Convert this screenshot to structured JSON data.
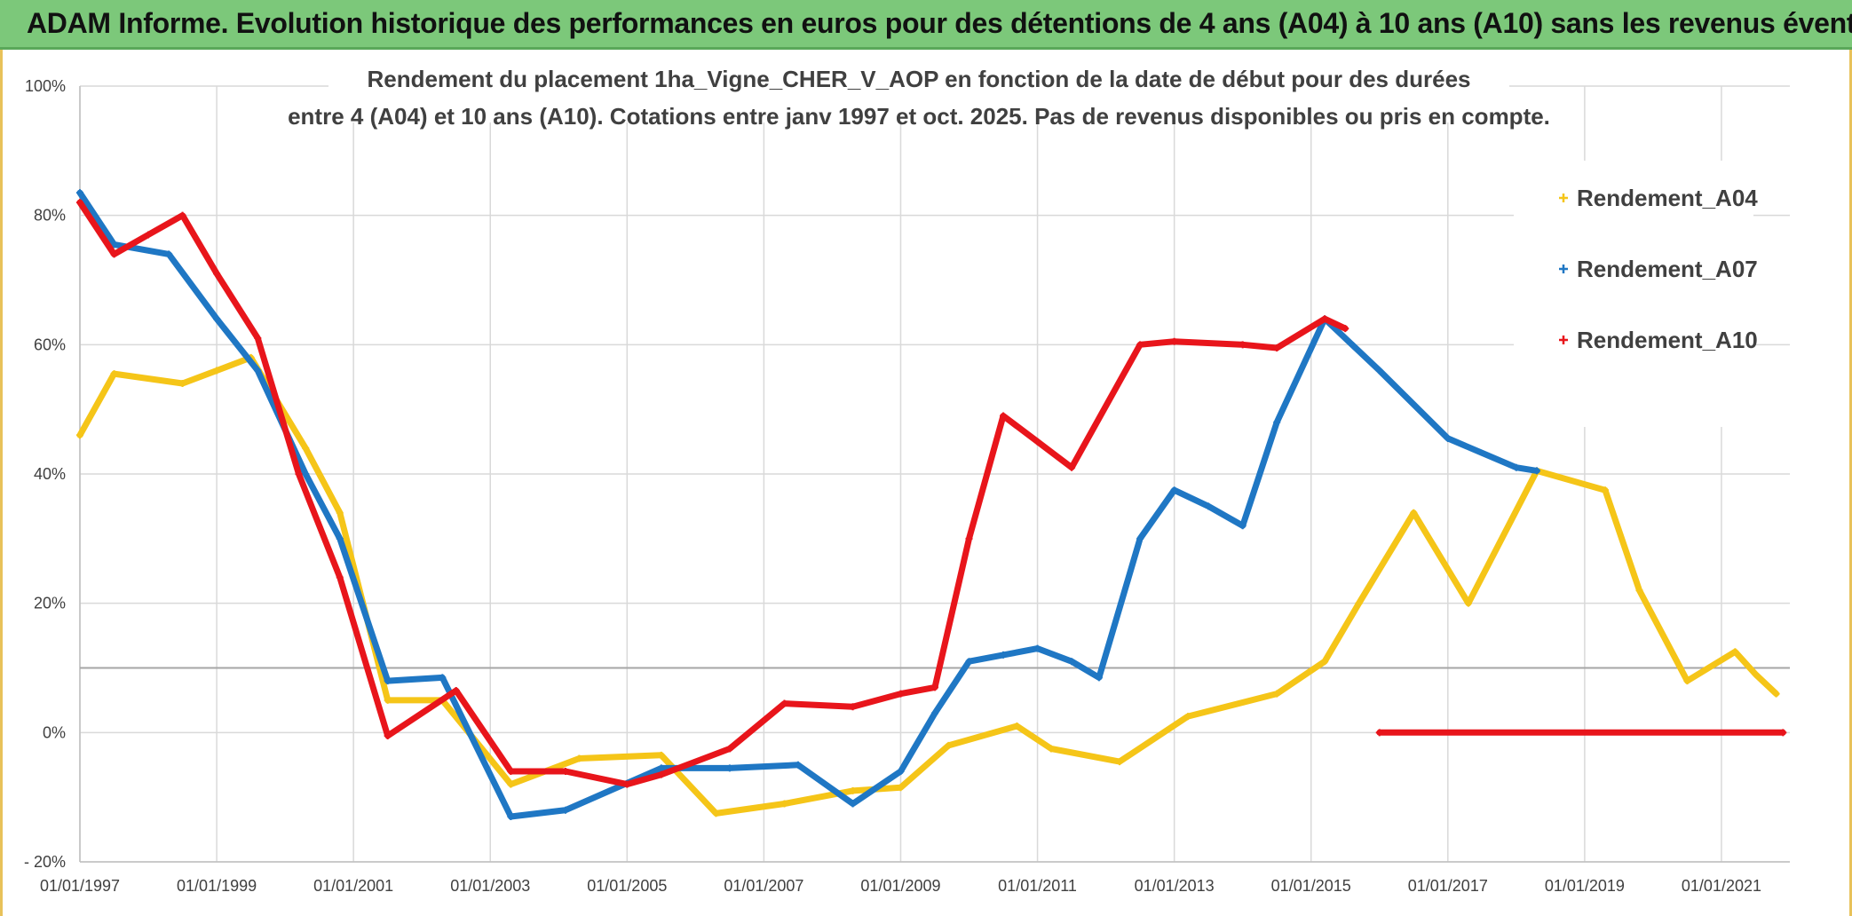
{
  "banner": {
    "title": "ADAM Informe. Evolution historique des performances en euros pour des détentions de 4 ans (A04) à 10 ans (A10) sans les revenus éventuels"
  },
  "chart_data": {
    "type": "line",
    "title_line1": "Rendement du placement 1ha_Vigne_CHER_V_AOP en fonction de la date de début pour des durées",
    "title_line2": "entre 4 (A04) et 10 ans (A10). Cotations entre janv 1997 et oct. 2025. Pas de revenus disponibles ou pris en compte.",
    "xlabel": "",
    "ylabel": "",
    "ylim": [
      -20,
      100
    ],
    "y_ticks": [
      -20,
      0,
      20,
      40,
      60,
      80,
      100
    ],
    "y_tick_labels": [
      "- 20%",
      "0%",
      "20%",
      "40%",
      "60%",
      "80%",
      "100%"
    ],
    "reference_line_y": 10,
    "xlim": [
      1997.0,
      2022.0
    ],
    "x_ticks": [
      1997,
      1999,
      2001,
      2003,
      2005,
      2007,
      2009,
      2011,
      2013,
      2015,
      2017,
      2019,
      2021
    ],
    "x_tick_labels": [
      "01/01/1997",
      "01/01/1999",
      "01/01/2001",
      "01/01/2003",
      "01/01/2005",
      "01/01/2007",
      "01/01/2009",
      "01/01/2011",
      "01/01/2013",
      "01/01/2015",
      "01/01/2017",
      "01/01/2019",
      "01/01/2021"
    ],
    "legend_position": "top-right",
    "series": [
      {
        "name": "Rendement_A04",
        "color": "#f5c518",
        "points": [
          [
            1997.0,
            46
          ],
          [
            1997.5,
            55.5
          ],
          [
            1998.5,
            54
          ],
          [
            1999.0,
            56
          ],
          [
            1999.5,
            58
          ],
          [
            2000.3,
            44
          ],
          [
            2000.8,
            34
          ],
          [
            2001.5,
            5
          ],
          [
            2002.3,
            5
          ],
          [
            2003.3,
            -8
          ],
          [
            2004.3,
            -4
          ],
          [
            2005.5,
            -3.5
          ],
          [
            2006.3,
            -12.5
          ],
          [
            2007.3,
            -11
          ],
          [
            2008.3,
            -9
          ],
          [
            2009.0,
            -8.5
          ],
          [
            2009.7,
            -2
          ],
          [
            2010.7,
            1
          ],
          [
            2011.2,
            -2.5
          ],
          [
            2012.2,
            -4.5
          ],
          [
            2013.2,
            2.5
          ],
          [
            2014.5,
            6
          ],
          [
            2015.2,
            11
          ],
          [
            2015.7,
            20
          ],
          [
            2016.5,
            34
          ],
          [
            2017.3,
            20
          ],
          [
            2018.3,
            40.5
          ],
          [
            2019.3,
            37.5
          ],
          [
            2019.8,
            22
          ],
          [
            2020.5,
            8
          ],
          [
            2021.2,
            12.5
          ],
          [
            2021.5,
            9
          ],
          [
            2021.8,
            6
          ]
        ]
      },
      {
        "name": "Rendement_A07",
        "color": "#1f77c4",
        "points": [
          [
            1997.0,
            83.5
          ],
          [
            1997.5,
            75.5
          ],
          [
            1998.3,
            74
          ],
          [
            1999.0,
            64
          ],
          [
            1999.6,
            56
          ],
          [
            2000.3,
            40
          ],
          [
            2000.8,
            30
          ],
          [
            2001.5,
            8
          ],
          [
            2002.3,
            8.5
          ],
          [
            2003.3,
            -13
          ],
          [
            2004.1,
            -12
          ],
          [
            2005.5,
            -5.5
          ],
          [
            2006.5,
            -5.5
          ],
          [
            2007.5,
            -5
          ],
          [
            2008.3,
            -11
          ],
          [
            2009.0,
            -6
          ],
          [
            2009.5,
            3
          ],
          [
            2010.0,
            11
          ],
          [
            2010.5,
            12
          ],
          [
            2011.0,
            13
          ],
          [
            2011.5,
            11
          ],
          [
            2011.9,
            8.5
          ],
          [
            2012.5,
            30
          ],
          [
            2013.0,
            37.5
          ],
          [
            2013.5,
            35
          ],
          [
            2014.0,
            32
          ],
          [
            2014.5,
            48
          ],
          [
            2015.2,
            64
          ],
          [
            2016.0,
            56
          ],
          [
            2017.0,
            45.5
          ],
          [
            2018.0,
            41
          ],
          [
            2018.3,
            40.5
          ]
        ]
      },
      {
        "name": "Rendement_A10",
        "color": "#e8151b",
        "points": [
          [
            1997.0,
            82
          ],
          [
            1997.5,
            74
          ],
          [
            1998.0,
            77
          ],
          [
            1998.5,
            80
          ],
          [
            1999.0,
            71
          ],
          [
            1999.6,
            61
          ],
          [
            2000.2,
            40
          ],
          [
            2000.8,
            24
          ],
          [
            2001.5,
            -0.5
          ],
          [
            2002.5,
            6.5
          ],
          [
            2003.3,
            -6
          ],
          [
            2004.1,
            -6
          ],
          [
            2005.0,
            -8
          ],
          [
            2005.5,
            -6.5
          ],
          [
            2006.5,
            -2.5
          ],
          [
            2007.3,
            4.5
          ],
          [
            2008.3,
            4
          ],
          [
            2009.0,
            6
          ],
          [
            2009.5,
            7
          ],
          [
            2010.0,
            30
          ],
          [
            2010.5,
            49
          ],
          [
            2011.0,
            45
          ],
          [
            2011.5,
            41
          ],
          [
            2012.5,
            60
          ],
          [
            2013.0,
            60.5
          ],
          [
            2014.0,
            60
          ],
          [
            2014.5,
            59.5
          ],
          [
            2015.2,
            64
          ],
          [
            2015.5,
            62.5
          ]
        ],
        "points_tail": [
          [
            2016.0,
            0
          ],
          [
            2021.9,
            0
          ]
        ]
      }
    ]
  }
}
